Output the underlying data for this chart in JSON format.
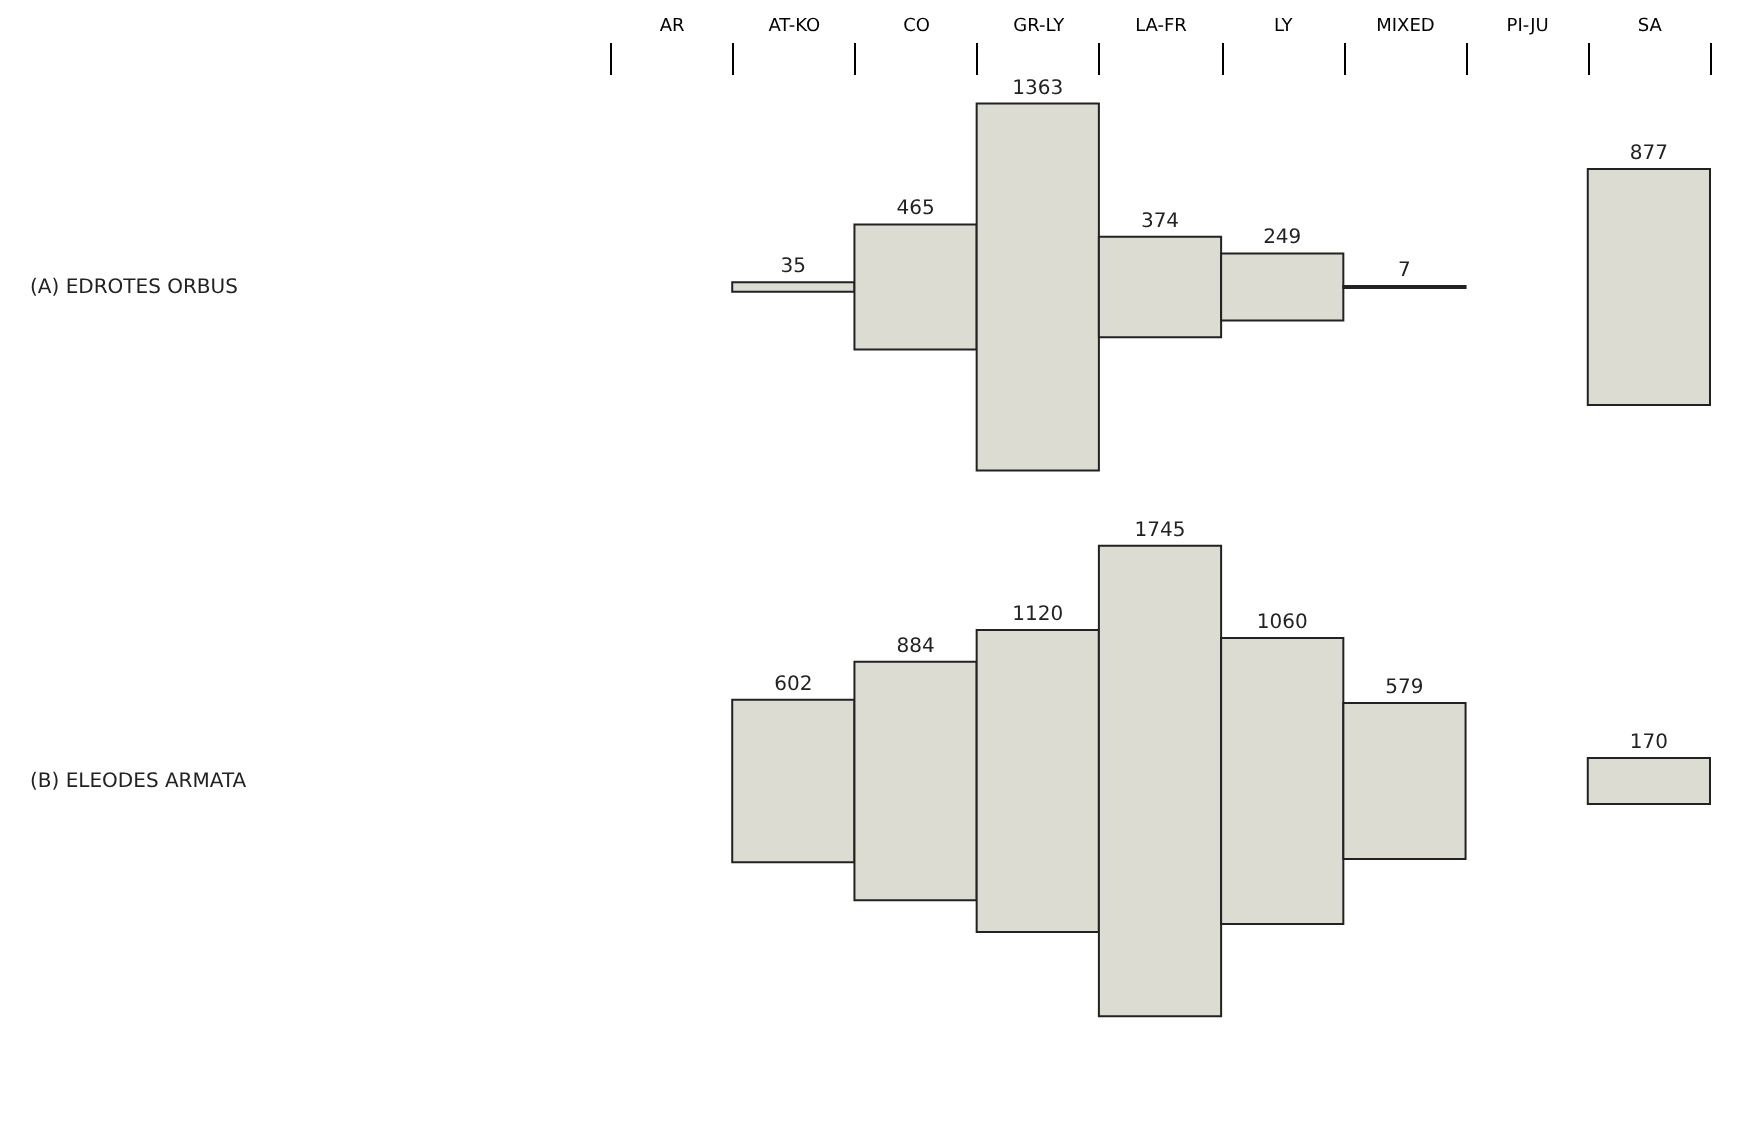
{
  "chart_data": {
    "type": "other",
    "categories": [
      "AR",
      "AT-KO",
      "CO",
      "GR-LY",
      "LA-FR",
      "LY",
      "MIXED",
      "PI-JU",
      "SA"
    ],
    "data_labels": true,
    "color": "#dcdcd2",
    "annotations": [
      "(A)  EDROTES  ORBUS",
      "(B)  ELEODES  ARMATA"
    ],
    "series": [
      {
        "values": [
          null,
          35,
          465,
          1363,
          374,
          249,
          7,
          null,
          877
        ]
      },
      {
        "values": [
          null,
          602,
          884,
          1120,
          1745,
          1060,
          579,
          null,
          170
        ]
      }
    ]
  }
}
